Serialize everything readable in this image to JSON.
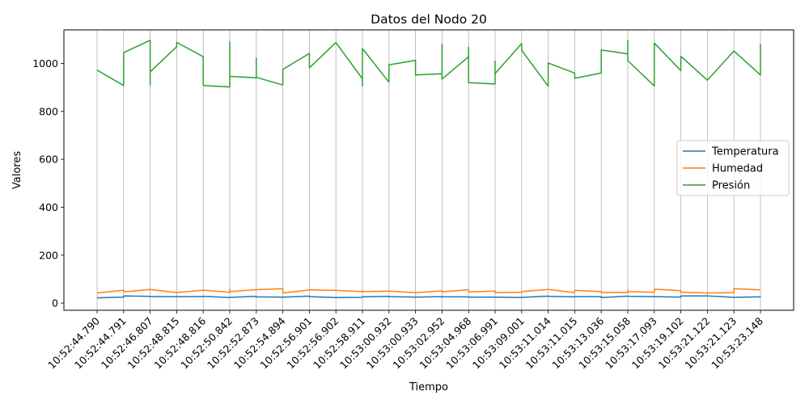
{
  "chart_data": {
    "type": "line",
    "title": "Datos del Nodo 20",
    "xlabel": "Tiempo",
    "ylabel": "Valores",
    "ylim": [
      -30,
      1140
    ],
    "yticks": [
      0,
      200,
      400,
      600,
      800,
      1000
    ],
    "grid": "x-only",
    "legend_position": "center-right",
    "categories": [
      "10:52:44.790",
      "10:52:44.791",
      "10:52:46.807",
      "10:52:48.815",
      "10:52:48.816",
      "10:52:50.842",
      "10:52:52.873",
      "10:52:54.894",
      "10:52:56.901",
      "10:52:56.902",
      "10:52:58.911",
      "10:53:00.932",
      "10:53:00.933",
      "10:53:02.952",
      "10:53:04.968",
      "10:53:06.991",
      "10:53:09.001",
      "10:53:11.014",
      "10:53:11.015",
      "10:53:13.036",
      "10:53:15.058",
      "10:53:17.093",
      "10:53:19.102",
      "10:53:21.122",
      "10:53:21.123",
      "10:53:23.148"
    ],
    "series": [
      {
        "name": "Temperatura",
        "color": "#1f77b4",
        "points": [
          [
            0,
            22
          ],
          [
            1,
            25
          ],
          [
            1,
            30
          ],
          [
            2,
            28
          ],
          [
            2,
            27
          ],
          [
            3,
            27
          ],
          [
            4,
            27
          ],
          [
            4,
            28
          ],
          [
            5,
            23
          ],
          [
            5,
            24
          ],
          [
            6,
            28
          ],
          [
            6,
            26
          ],
          [
            7,
            25
          ],
          [
            8,
            29
          ],
          [
            8,
            27
          ],
          [
            9,
            23
          ],
          [
            10,
            24
          ],
          [
            10,
            26
          ],
          [
            11,
            28
          ],
          [
            11,
            27
          ],
          [
            12,
            25
          ],
          [
            13,
            27
          ],
          [
            13,
            26
          ],
          [
            14,
            26
          ],
          [
            14,
            25
          ],
          [
            15,
            25
          ],
          [
            16,
            23
          ],
          [
            16,
            24
          ],
          [
            17,
            29
          ],
          [
            17,
            28
          ],
          [
            18,
            26
          ],
          [
            18,
            27
          ],
          [
            19,
            27
          ],
          [
            19,
            23
          ],
          [
            20,
            29
          ],
          [
            20,
            28
          ],
          [
            21,
            27
          ],
          [
            22,
            25
          ],
          [
            22,
            30
          ],
          [
            23,
            30
          ],
          [
            24,
            24
          ],
          [
            25,
            26
          ],
          [
            25,
            28
          ]
        ]
      },
      {
        "name": "Humedad",
        "color": "#ff7f0e",
        "points": [
          [
            0,
            42
          ],
          [
            1,
            54
          ],
          [
            1,
            47
          ],
          [
            2,
            57
          ],
          [
            3,
            44
          ],
          [
            4,
            54
          ],
          [
            5,
            45
          ],
          [
            5,
            57
          ],
          [
            5,
            48
          ],
          [
            6,
            56
          ],
          [
            7,
            60
          ],
          [
            7,
            42
          ],
          [
            8,
            55
          ],
          [
            9,
            53
          ],
          [
            10,
            48
          ],
          [
            10,
            52
          ],
          [
            10,
            48
          ],
          [
            11,
            50
          ],
          [
            12,
            43
          ],
          [
            13,
            51
          ],
          [
            13,
            47
          ],
          [
            14,
            56
          ],
          [
            14,
            47
          ],
          [
            15,
            50
          ],
          [
            15,
            43
          ],
          [
            16,
            45
          ],
          [
            16,
            48
          ],
          [
            17,
            57
          ],
          [
            18,
            44
          ],
          [
            18,
            53
          ],
          [
            19,
            48
          ],
          [
            19,
            44
          ],
          [
            20,
            44
          ],
          [
            20,
            55
          ],
          [
            20,
            48
          ],
          [
            21,
            45
          ],
          [
            21,
            58
          ],
          [
            22,
            52
          ],
          [
            22,
            45
          ],
          [
            23,
            42
          ],
          [
            24,
            43
          ],
          [
            24,
            60
          ],
          [
            25,
            55
          ]
        ]
      },
      {
        "name": "Presión",
        "color": "#2ca02c",
        "points": [
          [
            0,
            972
          ],
          [
            1,
            908
          ],
          [
            1,
            1045
          ],
          [
            2,
            1097
          ],
          [
            2,
            910
          ],
          [
            2,
            965
          ],
          [
            3,
            1070
          ],
          [
            3,
            1088
          ],
          [
            4,
            1028
          ],
          [
            4,
            908
          ],
          [
            5,
            902
          ],
          [
            5,
            1090
          ],
          [
            5,
            946
          ],
          [
            6,
            940
          ],
          [
            6,
            1022
          ],
          [
            6,
            942
          ],
          [
            7,
            910
          ],
          [
            7,
            975
          ],
          [
            8,
            1042
          ],
          [
            8,
            982
          ],
          [
            9,
            1087
          ],
          [
            10,
            936
          ],
          [
            10,
            906
          ],
          [
            10,
            1062
          ],
          [
            11,
            922
          ],
          [
            11,
            994
          ],
          [
            12,
            1013
          ],
          [
            12,
            952
          ],
          [
            13,
            957
          ],
          [
            13,
            1080
          ],
          [
            13,
            935
          ],
          [
            14,
            1028
          ],
          [
            14,
            1068
          ],
          [
            14,
            920
          ],
          [
            15,
            914
          ],
          [
            15,
            1010
          ],
          [
            15,
            958
          ],
          [
            16,
            1083
          ],
          [
            16,
            1055
          ],
          [
            17,
            905
          ],
          [
            17,
            1002
          ],
          [
            18,
            960
          ],
          [
            18,
            938
          ],
          [
            19,
            960
          ],
          [
            19,
            1056
          ],
          [
            20,
            1040
          ],
          [
            20,
            1096
          ],
          [
            20,
            1012
          ],
          [
            21,
            906
          ],
          [
            21,
            1085
          ],
          [
            22,
            970
          ],
          [
            22,
            1030
          ],
          [
            23,
            930
          ],
          [
            24,
            1052
          ],
          [
            25,
            952
          ],
          [
            25,
            1082
          ]
        ]
      }
    ]
  }
}
